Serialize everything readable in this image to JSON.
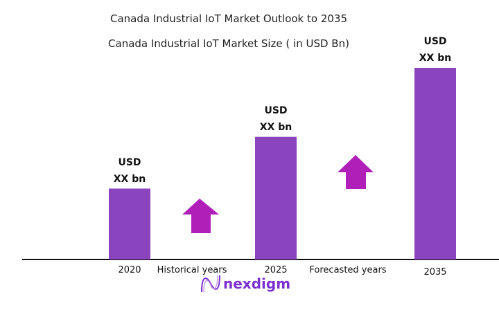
{
  "chart_data": {
    "type": "bar",
    "title": "Canada Industrial IoT Market Outlook to 2035",
    "subtitle": "Canada Industrial IoT Market Size  ( in USD Bn)",
    "categories": [
      "2020",
      "2025",
      "2035"
    ],
    "values_relative_percent": [
      37,
      64,
      100
    ],
    "data_labels": [
      [
        "USD",
        "XX bn"
      ],
      [
        "USD",
        "XX bn"
      ],
      [
        "USD",
        "XX bn"
      ]
    ],
    "annotations": [
      "Historical years",
      "Forecasted years"
    ],
    "bar_color": "#8a44bd",
    "arrow_color": "#b020b8",
    "grid": false,
    "legend": "none"
  },
  "brand": {
    "logo_text": "nexdigm",
    "color": "#7a2fd0"
  }
}
